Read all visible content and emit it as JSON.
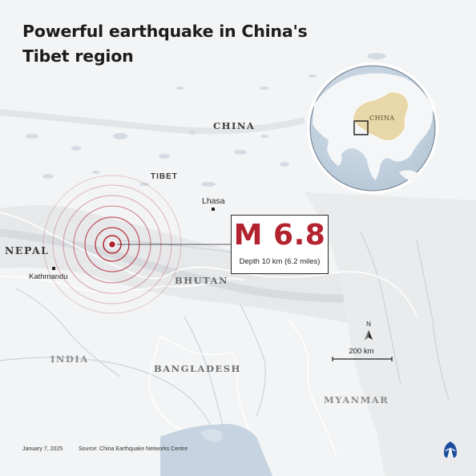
{
  "title": "Powerful earthquake in China's Tibet region",
  "labels": {
    "china": "CHINA",
    "tibet": "TIBET",
    "nepal": "NEPAL",
    "bhutan": "BHUTAN",
    "india": "INDIA",
    "bangladesh": "BANGLADESH",
    "myanmar": "MYANMAR"
  },
  "cities": {
    "lhasa": "Lhasa",
    "kathmandu": "Kathmandu"
  },
  "earthquake": {
    "magnitude": "M 6.8",
    "depth": "Depth 10 km (6.2 miles)"
  },
  "scale": {
    "distance": "200 km",
    "north": "N"
  },
  "globe": {
    "label": "CHINA"
  },
  "footer": {
    "date": "January 7, 2025",
    "source": "Source: China Earthquake Networks Centre"
  },
  "colors": {
    "accent": "#b3232f",
    "background": "#f3f4f5",
    "ocean": "#c5d4e0",
    "china_highlight": "#e8d7a8"
  },
  "icons": {
    "logo": "aa-logo-icon",
    "north": "north-arrow-icon"
  }
}
